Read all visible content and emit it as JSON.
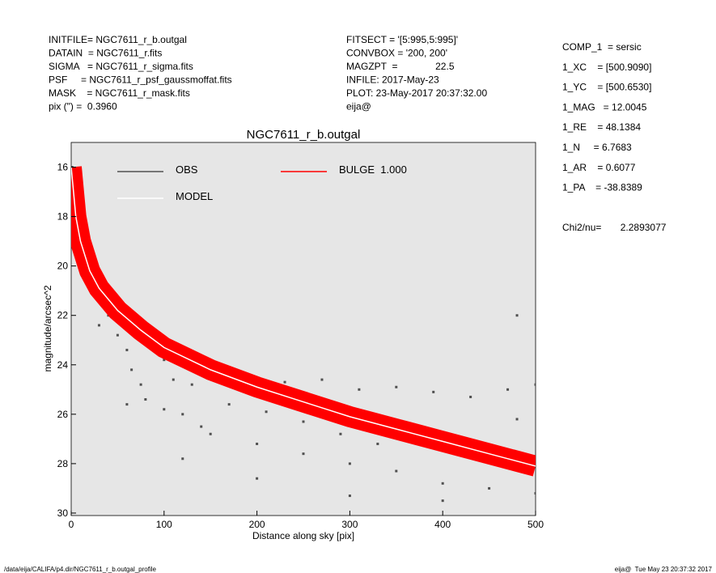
{
  "header": {
    "left": [
      "INITFILE= NGC7611_r_b.outgal",
      "DATAIN  = NGC7611_r.fits",
      "SIGMA   = NGC7611_r_sigma.fits",
      "PSF     = NGC7611_r_psf_gaussmoffat.fits",
      "MASK    = NGC7611_r_mask.fits",
      "pix (\") =  0.3960"
    ],
    "middle": [
      "FITSECT = '[5:995,5:995]'",
      "CONVBOX = '200, 200'",
      "MAGZPT  =              22.5",
      "INFILE: 2017-May-23",
      "PLOT: 23-May-2017 20:37:32.00",
      "eija@"
    ],
    "right": [
      "COMP_1  = sersic",
      "1_XC    = [500.9090]",
      "1_YC    = [500.6530]",
      "1_MAG   = 12.0045",
      "1_RE    = 48.1384",
      "1_N     = 6.7683",
      "1_AR    = 0.6077",
      "1_PA    = -38.8389"
    ],
    "chi2": "Chi2/nu=       2.2893077"
  },
  "footer": {
    "left": "/data/eija/CALIFA/p4.dir/NGC7611_r_b.outgal_profile",
    "right": "eija@  Tue May 23 20:37:32 2017"
  },
  "chart_data": {
    "type": "scatter",
    "title": "NGC7611_r_b.outgal",
    "x_label": "Distance along sky [pix]",
    "y_label": "magnitude/arcsec^2",
    "xlim": [
      0,
      500
    ],
    "xticks": [
      0,
      100,
      200,
      300,
      400,
      500
    ],
    "ylim": [
      30.1,
      15.0
    ],
    "yticks": [
      16,
      18,
      20,
      22,
      24,
      26,
      28,
      30
    ],
    "series": [
      {
        "name": "OBS",
        "color": "#505050",
        "kind": "points",
        "x": [
          1,
          3,
          6,
          10,
          15,
          20,
          25,
          30,
          35,
          40,
          40,
          45,
          50,
          55,
          60,
          60,
          65,
          70,
          75,
          80,
          80,
          90,
          100,
          100,
          110,
          120,
          130,
          140,
          150,
          150,
          170,
          190,
          200,
          210,
          230,
          250,
          250,
          270,
          290,
          300,
          310,
          330,
          350,
          350,
          370,
          390,
          400,
          410,
          430,
          450,
          450,
          470,
          480,
          490,
          500,
          500,
          30,
          60,
          120,
          200,
          300,
          400,
          480
        ],
        "y": [
          16.0,
          17.0,
          18.3,
          19.1,
          19.8,
          20.3,
          20.6,
          21.0,
          20.8,
          21.6,
          22.0,
          21.5,
          22.8,
          21.7,
          23.4,
          22.5,
          24.2,
          22.3,
          24.8,
          22.9,
          25.4,
          23.3,
          25.8,
          23.8,
          24.6,
          26.0,
          24.8,
          26.5,
          24.2,
          26.8,
          25.6,
          24.5,
          27.2,
          25.9,
          24.7,
          26.3,
          27.6,
          24.6,
          26.8,
          28.0,
          25.0,
          27.2,
          24.9,
          28.3,
          26.7,
          25.1,
          28.8,
          26.9,
          25.3,
          29.0,
          27.5,
          25.0,
          22.0,
          27.8,
          24.8,
          29.2,
          22.4,
          25.6,
          27.8,
          28.6,
          29.3,
          29.5,
          26.2
        ]
      },
      {
        "name": "MODEL",
        "color": "#ffffff",
        "kind": "line",
        "x": [
          0,
          5,
          10,
          20,
          30,
          50,
          75,
          100,
          150,
          200,
          250,
          300,
          350,
          400,
          450,
          500
        ],
        "y": [
          16.0,
          18.0,
          19.0,
          20.2,
          20.9,
          21.8,
          22.6,
          23.3,
          24.2,
          24.9,
          25.5,
          26.1,
          26.6,
          27.1,
          27.6,
          28.1
        ]
      },
      {
        "name": "BULGE  1.000",
        "color": "#ff0000",
        "kind": "band",
        "x": [
          0,
          5,
          10,
          20,
          30,
          50,
          75,
          100,
          150,
          200,
          250,
          300,
          350,
          400,
          450,
          500
        ],
        "y": [
          16.0,
          18.0,
          19.0,
          20.2,
          20.9,
          21.8,
          22.6,
          23.3,
          24.2,
          24.9,
          25.5,
          26.1,
          26.6,
          27.1,
          27.6,
          28.1
        ]
      }
    ]
  }
}
